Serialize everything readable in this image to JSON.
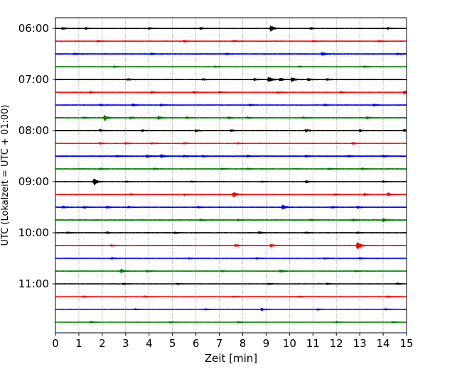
{
  "chart_data": {
    "type": "line",
    "title": "",
    "xlabel": "Zeit  [min]",
    "ylabel": "UTC (Lokalzeit = UTC + 01:00)",
    "xlim": [
      0,
      15
    ],
    "x_ticks": [
      0,
      1,
      2,
      3,
      4,
      5,
      6,
      7,
      8,
      9,
      10,
      11,
      12,
      13,
      14,
      15
    ],
    "grid_x": true,
    "grid_style": "dotted",
    "trace_interval_minutes": 15,
    "row_count": 24,
    "y_ticks": [
      {
        "label": "06:00",
        "row": 0
      },
      {
        "label": "07:00",
        "row": 4
      },
      {
        "label": "08:00",
        "row": 8
      },
      {
        "label": "09:00",
        "row": 12
      },
      {
        "label": "10:00",
        "row": 16
      },
      {
        "label": "11:00",
        "row": 20
      }
    ],
    "colors": [
      "#000000",
      "#ff0000",
      "#0000ff",
      "#008000"
    ],
    "series": [
      {
        "row": 0,
        "color": "#000000",
        "baseline": 0.5,
        "events": [
          [
            0.3,
            1.5
          ],
          [
            1.3,
            1.2
          ],
          [
            4.0,
            1.1
          ],
          [
            6.2,
            1.3
          ],
          [
            9.2,
            4.0
          ],
          [
            10.9,
            1.4
          ],
          [
            14.2,
            1.2
          ]
        ]
      },
      {
        "row": 1,
        "color": "#ff0000",
        "baseline": 0.45,
        "events": [
          [
            1.8,
            1.0
          ],
          [
            5.5,
            1.1
          ],
          [
            7.6,
            1.3
          ],
          [
            11.0,
            1.0
          ],
          [
            13.8,
            1.1
          ]
        ]
      },
      {
        "row": 2,
        "color": "#0000ff",
        "baseline": 0.5,
        "events": [
          [
            0.8,
            1.0
          ],
          [
            4.1,
            1.1
          ],
          [
            7.3,
            1.0
          ],
          [
            11.4,
            2.5
          ],
          [
            14.6,
            1.2
          ]
        ]
      },
      {
        "row": 3,
        "color": "#008000",
        "baseline": 0.4,
        "events": [
          [
            2.5,
            1.0
          ],
          [
            6.8,
            1.0
          ],
          [
            10.4,
            1.0
          ],
          [
            13.2,
            1.0
          ]
        ]
      },
      {
        "row": 4,
        "color": "#000000",
        "baseline": 0.55,
        "events": [
          [
            3.1,
            1.1
          ],
          [
            6.3,
            1.0
          ],
          [
            8.5,
            1.4
          ],
          [
            9.1,
            4.0
          ],
          [
            9.6,
            2.0
          ],
          [
            10.1,
            2.8
          ],
          [
            10.8,
            1.6
          ],
          [
            11.6,
            1.2
          ]
        ]
      },
      {
        "row": 5,
        "color": "#ff0000",
        "baseline": 0.45,
        "events": [
          [
            1.5,
            1.0
          ],
          [
            4.1,
            1.5
          ],
          [
            5.9,
            1.6
          ],
          [
            7.0,
            1.1
          ],
          [
            9.5,
            1.3
          ],
          [
            12.2,
            1.2
          ],
          [
            14.9,
            2.8
          ]
        ]
      },
      {
        "row": 6,
        "color": "#0000ff",
        "baseline": 0.45,
        "events": [
          [
            1.9,
            1.2
          ],
          [
            3.3,
            1.5
          ],
          [
            4.5,
            1.3
          ],
          [
            8.3,
            1.1
          ],
          [
            11.5,
            1.2
          ],
          [
            13.6,
            1.2
          ]
        ]
      },
      {
        "row": 7,
        "color": "#008000",
        "baseline": 0.55,
        "events": [
          [
            1.2,
            1.3
          ],
          [
            2.1,
            4.0
          ],
          [
            3.2,
            1.3
          ],
          [
            4.4,
            2.5
          ],
          [
            5.6,
            1.3
          ],
          [
            7.4,
            1.2
          ],
          [
            8.2,
            1.2
          ],
          [
            10.6,
            1.1
          ],
          [
            13.3,
            1.5
          ]
        ]
      },
      {
        "row": 8,
        "color": "#000000",
        "baseline": 0.55,
        "events": [
          [
            1.9,
            1.3
          ],
          [
            3.7,
            1.2
          ],
          [
            6.0,
            1.3
          ],
          [
            7.5,
            1.2
          ],
          [
            10.7,
            1.8
          ],
          [
            13.0,
            1.3
          ],
          [
            14.9,
            1.5
          ]
        ]
      },
      {
        "row": 9,
        "color": "#ff0000",
        "baseline": 0.45,
        "events": [
          [
            1.9,
            1.0
          ],
          [
            3.0,
            1.2
          ],
          [
            4.1,
            1.2
          ],
          [
            5.5,
            1.1
          ],
          [
            7.8,
            1.1
          ],
          [
            12.7,
            1.3
          ]
        ]
      },
      {
        "row": 10,
        "color": "#0000ff",
        "baseline": 0.6,
        "events": [
          [
            2.6,
            1.2
          ],
          [
            3.9,
            1.8
          ],
          [
            4.5,
            2.2
          ],
          [
            5.5,
            1.4
          ],
          [
            6.3,
            1.3
          ],
          [
            8.2,
            1.3
          ],
          [
            10.7,
            1.3
          ],
          [
            12.5,
            1.4
          ],
          [
            14.0,
            1.3
          ]
        ]
      },
      {
        "row": 11,
        "color": "#008000",
        "baseline": 0.5,
        "events": [
          [
            1.9,
            1.3
          ],
          [
            4.2,
            1.1
          ],
          [
            7.1,
            1.4
          ],
          [
            8.2,
            1.2
          ],
          [
            11.7,
            1.2
          ],
          [
            13.1,
            1.3
          ]
        ]
      },
      {
        "row": 12,
        "color": "#000000",
        "baseline": 0.4,
        "events": [
          [
            1.65,
            5.0
          ],
          [
            3.0,
            1.0
          ],
          [
            5.8,
            1.0
          ],
          [
            8.8,
            1.0
          ],
          [
            10.7,
            2.0
          ],
          [
            14.0,
            1.1
          ]
        ]
      },
      {
        "row": 13,
        "color": "#ff0000",
        "baseline": 0.5,
        "events": [
          [
            3.2,
            1.1
          ],
          [
            5.5,
            1.1
          ],
          [
            7.6,
            4.0
          ],
          [
            11.9,
            1.2
          ],
          [
            13.2,
            1.4
          ],
          [
            14.2,
            2.0
          ]
        ]
      },
      {
        "row": 14,
        "color": "#0000ff",
        "baseline": 0.55,
        "events": [
          [
            0.3,
            1.8
          ],
          [
            1.2,
            1.6
          ],
          [
            2.2,
            1.6
          ],
          [
            3.1,
            1.2
          ],
          [
            6.1,
            1.2
          ],
          [
            9.7,
            3.8
          ],
          [
            11.8,
            1.4
          ],
          [
            12.9,
            1.5
          ]
        ]
      },
      {
        "row": 15,
        "color": "#008000",
        "baseline": 0.55,
        "events": [
          [
            6.2,
            1.2
          ],
          [
            7.8,
            1.2
          ],
          [
            10.9,
            1.3
          ],
          [
            12.7,
            1.8
          ],
          [
            14.0,
            2.6
          ]
        ]
      },
      {
        "row": 16,
        "color": "#000000",
        "baseline": 0.45,
        "events": [
          [
            0.5,
            1.3
          ],
          [
            2.2,
            1.1
          ],
          [
            5.1,
            1.2
          ],
          [
            8.7,
            1.6
          ],
          [
            10.7,
            1.0
          ],
          [
            12.9,
            1.2
          ]
        ]
      },
      {
        "row": 17,
        "color": "#ff0000",
        "baseline": 0.45,
        "events": [
          [
            2.4,
            1.1
          ],
          [
            7.7,
            1.8
          ],
          [
            9.2,
            1.7
          ],
          [
            12.9,
            6.0
          ]
        ]
      },
      {
        "row": 18,
        "color": "#0000ff",
        "baseline": 0.45,
        "events": [
          [
            2.4,
            1.1
          ],
          [
            5.7,
            1.0
          ],
          [
            8.6,
            1.0
          ],
          [
            11.5,
            1.0
          ],
          [
            13.0,
            1.2
          ]
        ]
      },
      {
        "row": 19,
        "color": "#008000",
        "baseline": 0.45,
        "events": [
          [
            2.8,
            2.8
          ],
          [
            3.9,
            1.2
          ],
          [
            7.1,
            1.0
          ],
          [
            9.6,
            2.2
          ],
          [
            12.8,
            1.1
          ]
        ]
      },
      {
        "row": 20,
        "color": "#000000",
        "baseline": 0.35,
        "events": [
          [
            2.9,
            1.0
          ],
          [
            5.2,
            1.0
          ],
          [
            9.1,
            1.2
          ],
          [
            11.6,
            1.0
          ],
          [
            14.6,
            1.2
          ]
        ]
      },
      {
        "row": 21,
        "color": "#ff0000",
        "baseline": 0.35,
        "events": [
          [
            1.2,
            1.0
          ],
          [
            3.8,
            1.0
          ],
          [
            7.6,
            1.0
          ],
          [
            10.4,
            1.0
          ],
          [
            14.2,
            1.0
          ]
        ]
      },
      {
        "row": 22,
        "color": "#0000ff",
        "baseline": 0.35,
        "events": [
          [
            3.4,
            1.0
          ],
          [
            6.4,
            1.0
          ],
          [
            8.8,
            1.6
          ],
          [
            11.2,
            1.0
          ],
          [
            14.1,
            1.0
          ]
        ]
      },
      {
        "row": 23,
        "color": "#008000",
        "baseline": 0.35,
        "events": [
          [
            1.5,
            1.5
          ],
          [
            4.9,
            1.0
          ],
          [
            7.8,
            1.0
          ],
          [
            12.0,
            1.0
          ],
          [
            14.4,
            1.0
          ]
        ]
      }
    ]
  }
}
